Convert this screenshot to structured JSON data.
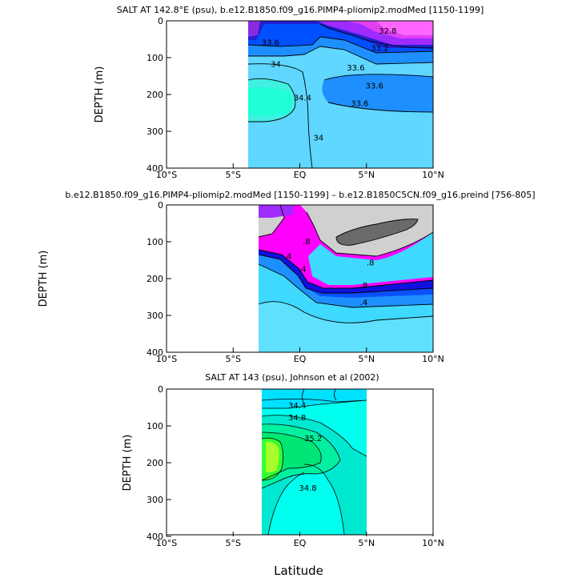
{
  "figure": {
    "xlabel": "Latitude",
    "xlim": [
      -10,
      10
    ],
    "xticks": [
      -10,
      -5,
      0,
      5,
      10
    ],
    "xtick_labels": [
      "10°S",
      "5°S",
      "EQ",
      "5°N",
      "10°N"
    ],
    "yticks": [
      0,
      100,
      200,
      300,
      400
    ],
    "ytick_labels": [
      "0",
      "100",
      "200",
      "300",
      "400"
    ]
  },
  "chart_data": [
    {
      "type": "heatmap",
      "title": "SALT AT 142.8°E (psu), b.e12.B1850.f09_g16.PIMP4-pliomip2.modMed [1150-1199]",
      "ylabel": "DEPTH (m)",
      "xlim": [
        -10,
        10
      ],
      "ylim": [
        400,
        0
      ],
      "data_lat_range": [
        -4.1,
        10
      ],
      "contour_labels": [
        {
          "text": "32.8",
          "lat": 6.6,
          "depth": 28
        },
        {
          "text": "33.2",
          "lat": 6.0,
          "depth": 75
        },
        {
          "text": "33.6",
          "lat": -2.2,
          "depth": 60
        },
        {
          "text": "34",
          "lat": -1.8,
          "depth": 118
        },
        {
          "text": "34.4",
          "lat": 0.2,
          "depth": 210
        },
        {
          "text": "33.6",
          "lat": 4.2,
          "depth": 128
        },
        {
          "text": "33.6",
          "lat": 5.6,
          "depth": 177
        },
        {
          "text": "33.6",
          "lat": 4.5,
          "depth": 225
        },
        {
          "text": "34",
          "lat": 1.4,
          "depth": 318
        }
      ]
    },
    {
      "type": "heatmap",
      "title": "b.e12.B1850.f09_g16.PIMP4-pliomip2.modMed [1150-1199] – b.e12.B1850C5CN.f09_g16.preind [756-805]",
      "ylabel": "DEPTH (m)",
      "xlim": [
        -10,
        10
      ],
      "ylim": [
        400,
        0
      ],
      "data_lat_range": [
        -3.1,
        10
      ],
      "contour_labels": [
        {
          "text": ".8",
          "lat": 0.5,
          "depth": 100
        },
        {
          "text": ".8",
          "lat": 5.3,
          "depth": 158
        },
        {
          "text": ".8",
          "lat": 4.8,
          "depth": 220
        },
        {
          "text": ".4",
          "lat": -0.9,
          "depth": 140
        },
        {
          "text": ".4",
          "lat": 0.2,
          "depth": 175
        },
        {
          "text": ".4",
          "lat": 4.8,
          "depth": 265
        }
      ]
    },
    {
      "type": "heatmap",
      "title": "SALT AT 143 (psu), Johnson et al (2002)",
      "ylabel": "DEPTH (m)",
      "xlim": [
        -10,
        10
      ],
      "ylim": [
        400,
        0
      ],
      "data_lat_range": [
        -2.9,
        5
      ],
      "contour_labels": [
        {
          "text": "34.4",
          "lat": -0.2,
          "depth": 46
        },
        {
          "text": "34.8",
          "lat": -0.2,
          "depth": 78
        },
        {
          "text": "35.2",
          "lat": 1.0,
          "depth": 135
        },
        {
          "text": "34.8",
          "lat": 0.6,
          "depth": 270
        }
      ]
    }
  ]
}
